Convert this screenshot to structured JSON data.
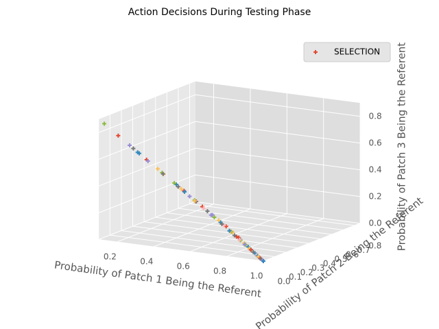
{
  "chart_data": {
    "type": "scatter3d",
    "title": "Action Decisions During Testing Phase",
    "x_label": "Probability of Patch 1 Being the Referent",
    "y_label": "Probability of Patch 2 Being the Referent",
    "z_label": "Probability of Patch 3 Being the Referent",
    "xlim": [
      0.1,
      1.0
    ],
    "ylim": [
      0,
      0.85
    ],
    "zlim": [
      0,
      0.9
    ],
    "xticks": [
      0.2,
      0.4,
      0.6,
      0.8,
      {
        "value": 1,
        "label": "1.0"
      }
    ],
    "yticks": [
      {
        "value": 0,
        "label": "0.0"
      },
      0.1,
      0.2,
      0.3,
      0.4,
      0.5,
      0.6,
      0.7,
      0.8
    ],
    "zticks": [
      {
        "value": 0,
        "label": "0.0"
      },
      0.2,
      0.4,
      0.6,
      0.8
    ],
    "grid": true,
    "legend": "upper right",
    "series": [
      {
        "name": "SELECTION",
        "color": "#E24A33",
        "x": [
          0.1,
          0.17,
          0.22,
          0.24,
          0.26,
          0.27,
          0.3,
          0.32,
          0.33,
          0.36,
          0.38,
          0.39,
          0.4,
          0.42,
          0.43,
          0.44,
          0.46,
          0.47,
          0.48,
          0.5,
          0.51,
          0.52,
          0.53,
          0.55,
          0.56,
          0.57,
          0.58,
          0.6,
          0.61,
          0.62,
          0.63,
          0.64,
          0.66,
          0.67,
          0.68,
          0.7,
          0.71,
          0.72,
          0.74,
          0.75,
          0.76,
          0.78,
          0.79,
          0.8,
          0.82,
          0.83,
          0.84,
          0.86,
          0.87,
          0.88,
          0.9,
          0.91,
          0.92,
          0.94,
          0.95,
          0.96,
          0.97,
          0.98,
          0.99,
          1.0
        ],
        "y": [
          0.05,
          0.06,
          0.08,
          0.08,
          0.1,
          0.07,
          0.1,
          0.08,
          0.15,
          0.14,
          0.12,
          0.1,
          0.2,
          0.15,
          0.22,
          0.18,
          0.12,
          0.16,
          0.25,
          0.2,
          0.14,
          0.18,
          0.22,
          0.12,
          0.26,
          0.2,
          0.15,
          0.25,
          0.3,
          0.18,
          0.22,
          0.12,
          0.2,
          0.26,
          0.15,
          0.2,
          0.25,
          0.16,
          0.12,
          0.2,
          0.15,
          0.1,
          0.17,
          0.12,
          0.08,
          0.14,
          0.1,
          0.06,
          0.1,
          0.07,
          0.05,
          0.07,
          0.04,
          0.04,
          0.03,
          0.02,
          0.02,
          0.01,
          0.01,
          0.0
        ],
        "z": [
          0.85,
          0.77,
          0.7,
          0.68,
          0.64,
          0.66,
          0.6,
          0.6,
          0.52,
          0.5,
          0.5,
          0.51,
          0.4,
          0.43,
          0.35,
          0.38,
          0.42,
          0.37,
          0.27,
          0.3,
          0.35,
          0.3,
          0.25,
          0.33,
          0.18,
          0.23,
          0.27,
          0.15,
          0.09,
          0.2,
          0.15,
          0.24,
          0.14,
          0.07,
          0.17,
          0.1,
          0.04,
          0.12,
          0.14,
          0.05,
          0.09,
          0.12,
          0.04,
          0.08,
          0.1,
          0.03,
          0.06,
          0.08,
          0.03,
          0.05,
          0.05,
          0.02,
          0.04,
          0.02,
          0.02,
          0.02,
          0.01,
          0.01,
          0.0,
          0.0
        ],
        "colors": [
          "#8EBA42",
          "#E24A33",
          "#988ED5",
          "#777777",
          "#348ABD",
          "#348ABD",
          "#E24A33",
          "#988ED5",
          "#FBC15E",
          "#8EBA42",
          "#FBC15E",
          "#777777",
          "#348ABD",
          "#8EBA42",
          "#E24A33",
          "#FBC15E",
          "#777777",
          "#348ABD",
          "#FFB5B8",
          "#8EBA42",
          "#988ED5",
          "#777777",
          "#E24A33",
          "#FBC15E",
          "#988ED5",
          "#777777",
          "#FFB5B8",
          "#FBC15E",
          "#E24A33",
          "#8EBA42",
          "#348ABD",
          "#988ED5",
          "#FFB5B8",
          "#FBC15E",
          "#777777",
          "#8EBA42",
          "#E24A33",
          "#FBC15E",
          "#348ABD",
          "#988ED5",
          "#E24A33",
          "#777777",
          "#FBC15E",
          "#8EBA42",
          "#FFB5B8",
          "#348ABD",
          "#8EBA42",
          "#988ED5",
          "#348ABD",
          "#FBC15E",
          "#E24A33",
          "#348ABD",
          "#777777",
          "#FFB5B8",
          "#348ABD",
          "#FBC15E",
          "#E24A33",
          "#777777",
          "#988ED5",
          "#348ABD"
        ]
      }
    ]
  }
}
